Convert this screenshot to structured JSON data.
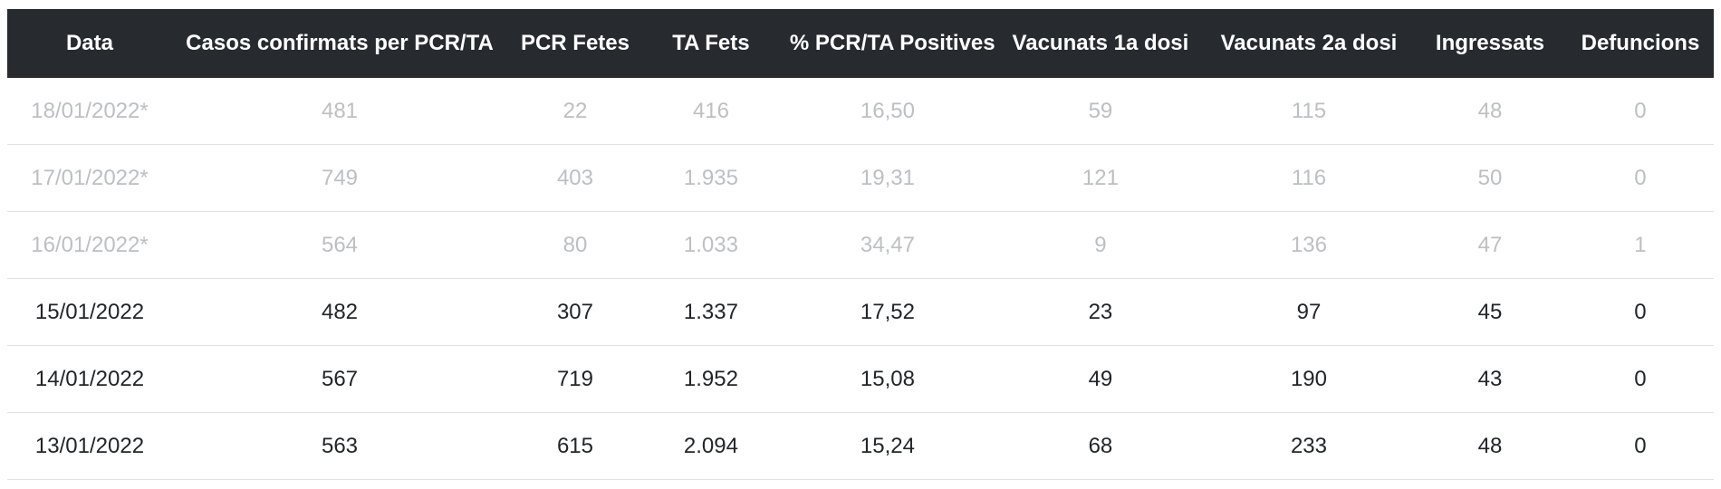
{
  "colors": {
    "header_bg": "#272b30",
    "header_text": "#ffffff",
    "row_text": "#212529",
    "muted_text": "#bdbfc2",
    "row_border": "#dee2e6"
  },
  "table": {
    "columns": [
      {
        "key": "data",
        "label": "Data"
      },
      {
        "key": "casos",
        "label": "Casos confirmats per PCR/TA"
      },
      {
        "key": "pcr-fetes",
        "label": "PCR Fetes"
      },
      {
        "key": "ta-fets",
        "label": "TA Fets"
      },
      {
        "key": "pct",
        "label": "% PCR/TA Positives"
      },
      {
        "key": "vac1",
        "label": "Vacunats 1a dosi"
      },
      {
        "key": "vac2",
        "label": "Vacunats 2a dosi"
      },
      {
        "key": "ingressats",
        "label": "Ingressats"
      },
      {
        "key": "defuncions",
        "label": "Defuncions"
      }
    ],
    "rows": [
      {
        "provisional": true,
        "cells": [
          "18/01/2022*",
          "481",
          "22",
          "416",
          "16,50",
          "59",
          "115",
          "48",
          "0"
        ]
      },
      {
        "provisional": true,
        "cells": [
          "17/01/2022*",
          "749",
          "403",
          "1.935",
          "19,31",
          "121",
          "116",
          "50",
          "0"
        ]
      },
      {
        "provisional": true,
        "cells": [
          "16/01/2022*",
          "564",
          "80",
          "1.033",
          "34,47",
          "9",
          "136",
          "47",
          "1"
        ]
      },
      {
        "provisional": false,
        "cells": [
          "15/01/2022",
          "482",
          "307",
          "1.337",
          "17,52",
          "23",
          "97",
          "45",
          "0"
        ]
      },
      {
        "provisional": false,
        "cells": [
          "14/01/2022",
          "567",
          "719",
          "1.952",
          "15,08",
          "49",
          "190",
          "43",
          "0"
        ]
      },
      {
        "provisional": false,
        "cells": [
          "13/01/2022",
          "563",
          "615",
          "2.094",
          "15,24",
          "68",
          "233",
          "48",
          "0"
        ]
      }
    ]
  }
}
